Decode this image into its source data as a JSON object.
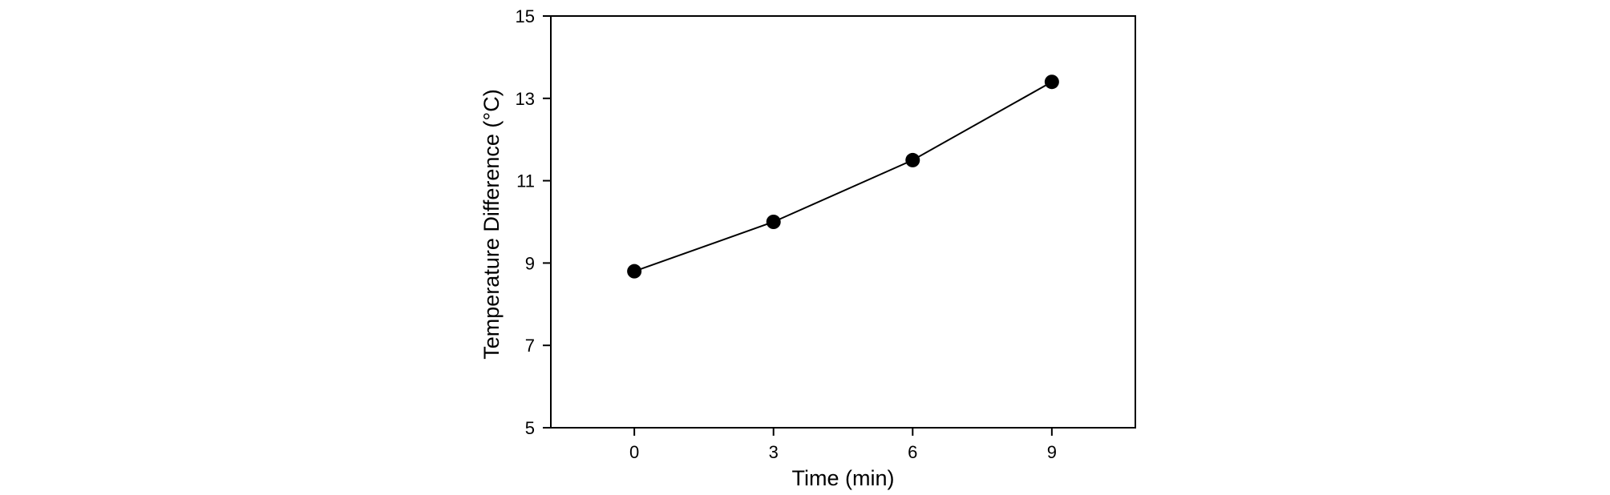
{
  "chart_data": {
    "type": "line",
    "title": "",
    "xlabel": "Time (min)",
    "ylabel": "Temperature Difference (°C)",
    "x": [
      0,
      3,
      6,
      9
    ],
    "series": [
      {
        "values": [
          8.8,
          10.0,
          11.5,
          13.4
        ]
      }
    ],
    "xlim": [
      -1.8,
      10.8
    ],
    "ylim": [
      5,
      15
    ],
    "xticks": [
      0,
      3,
      6,
      9
    ],
    "yticks": [
      5,
      7,
      9,
      11,
      13,
      15
    ],
    "grid": false,
    "marker": "filled-circle",
    "line_color": "#000000",
    "marker_color": "#000000"
  }
}
